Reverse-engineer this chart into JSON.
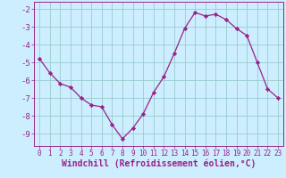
{
  "x": [
    0,
    1,
    2,
    3,
    4,
    5,
    6,
    7,
    8,
    9,
    10,
    11,
    12,
    13,
    14,
    15,
    16,
    17,
    18,
    19,
    20,
    21,
    22,
    23
  ],
  "y": [
    -4.8,
    -5.6,
    -6.2,
    -6.4,
    -7.0,
    -7.4,
    -7.5,
    -8.5,
    -9.3,
    -8.7,
    -7.9,
    -6.7,
    -5.8,
    -4.5,
    -3.1,
    -2.2,
    -2.4,
    -2.3,
    -2.6,
    -3.1,
    -3.5,
    -5.0,
    -6.5,
    -7.0
  ],
  "line_color": "#992288",
  "marker": "D",
  "marker_size": 2.2,
  "bg_color": "#cceeff",
  "grid_color": "#99cccc",
  "xlabel": "Windchill (Refroidissement éolien,°C)",
  "xlabel_color": "#992288",
  "xlim": [
    -0.5,
    23.5
  ],
  "ylim": [
    -9.7,
    -1.6
  ],
  "yticks": [
    -9,
    -8,
    -7,
    -6,
    -5,
    -4,
    -3,
    -2
  ],
  "xticks": [
    0,
    1,
    2,
    3,
    4,
    5,
    6,
    7,
    8,
    9,
    10,
    11,
    12,
    13,
    14,
    15,
    16,
    17,
    18,
    19,
    20,
    21,
    22,
    23
  ],
  "tick_color": "#992288",
  "x_tick_fontsize": 5.5,
  "y_tick_fontsize": 6.5,
  "xlabel_fontsize": 7.0,
  "spine_color": "#992288",
  "linewidth": 0.9
}
